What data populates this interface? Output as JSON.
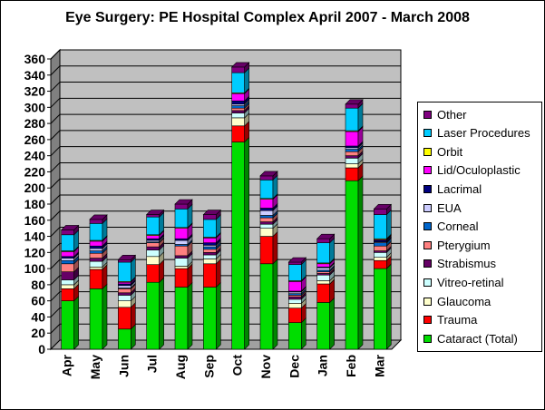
{
  "chart_data": {
    "type": "bar",
    "stacked": true,
    "three_d": true,
    "title": "Eye Surgery: PE Hospital Complex April 2007 - March 2008",
    "xlabel": "",
    "ylabel": "",
    "ylim": [
      0,
      360
    ],
    "yticks": [
      "0",
      "20",
      "40",
      "60",
      "80",
      "100",
      "120",
      "140",
      "160",
      "180",
      "200",
      "220",
      "240",
      "260",
      "280",
      "300",
      "320",
      "340",
      "360"
    ],
    "grid": true,
    "legend_position": "right",
    "categories": [
      "Apr",
      "May",
      "Jun",
      "Jul",
      "Aug",
      "Sep",
      "Oct",
      "Nov",
      "Dec",
      "Jan",
      "Feb",
      "Mar"
    ],
    "series": [
      {
        "name": "Cataract (Total)",
        "color": "#00dd00",
        "values": [
          60,
          75,
          25,
          83,
          77,
          77,
          257,
          106,
          33,
          58,
          209,
          100
        ]
      },
      {
        "name": "Trauma",
        "color": "#ff0000",
        "values": [
          15,
          24,
          27,
          22,
          23,
          29,
          20,
          34,
          18,
          23,
          16,
          10
        ]
      },
      {
        "name": "Glaucoma",
        "color": "#ffffcc",
        "values": [
          5,
          3,
          8,
          10,
          3,
          6,
          10,
          10,
          6,
          4,
          5,
          4
        ]
      },
      {
        "name": "Vitreo-retinal",
        "color": "#ccffff",
        "values": [
          6,
          7,
          7,
          8,
          10,
          5,
          6,
          5,
          5,
          7,
          7,
          6
        ]
      },
      {
        "name": "Strabismus",
        "color": "#660066",
        "values": [
          10,
          4,
          3,
          4,
          3,
          3,
          3,
          3,
          3,
          2,
          3,
          2
        ]
      },
      {
        "name": "Pterygium",
        "color": "#ff8080",
        "values": [
          10,
          6,
          5,
          5,
          12,
          4,
          3,
          5,
          2,
          2,
          5,
          6
        ]
      },
      {
        "name": "Corneal",
        "color": "#0066cc",
        "values": [
          4,
          3,
          1,
          1,
          2,
          3,
          3,
          3,
          2,
          2,
          3,
          4
        ]
      },
      {
        "name": "EUA",
        "color": "#ccccff",
        "values": [
          3,
          3,
          3,
          2,
          5,
          2,
          2,
          6,
          2,
          3,
          2,
          1
        ]
      },
      {
        "name": "Lacrimal",
        "color": "#000080",
        "values": [
          2,
          3,
          2,
          2,
          2,
          3,
          4,
          3,
          1,
          1,
          2,
          2
        ]
      },
      {
        "name": "Lid/Oculoplastic",
        "color": "#ff00ff",
        "values": [
          6,
          6,
          2,
          4,
          13,
          6,
          9,
          11,
          12,
          4,
          18,
          1
        ]
      },
      {
        "name": "Orbit",
        "color": "#ffff00",
        "values": [
          1,
          1,
          1,
          1,
          1,
          1,
          1,
          1,
          1,
          1,
          1,
          1
        ]
      },
      {
        "name": "Laser Procedures",
        "color": "#00ccff",
        "values": [
          20,
          21,
          24,
          22,
          23,
          22,
          25,
          23,
          20,
          25,
          28,
          30
        ]
      },
      {
        "name": "Other",
        "color": "#800080",
        "values": [
          6,
          5,
          3,
          3,
          6,
          6,
          7,
          5,
          3,
          5,
          5,
          7
        ]
      }
    ],
    "legend_order": [
      "Other",
      "Laser Procedures",
      "Orbit",
      "Lid/Oculoplastic",
      "Lacrimal",
      "EUA",
      "Corneal",
      "Pterygium",
      "Strabismus",
      "Vitreo-retinal",
      "Glaucoma",
      "Trauma",
      "Cataract (Total)"
    ]
  }
}
